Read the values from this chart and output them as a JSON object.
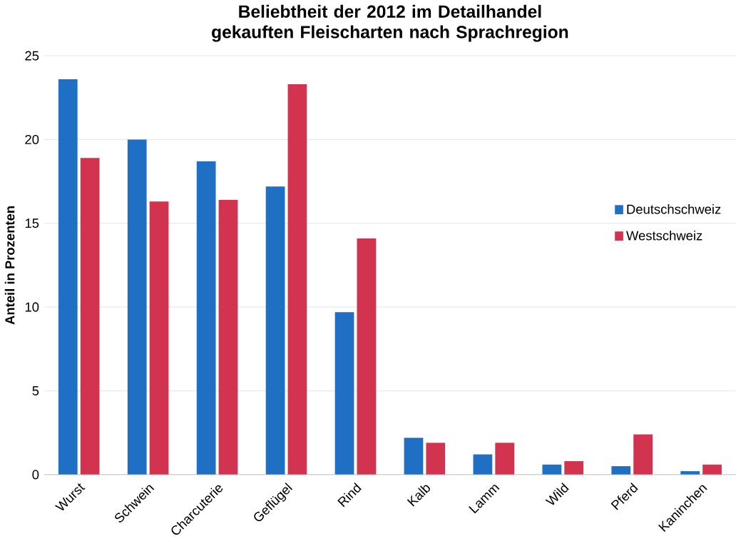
{
  "chart_data": {
    "type": "bar",
    "title": "Beliebtheit der 2012 im Detailhandel gekauften Fleischarten nach Sprachregion",
    "ylabel": "Anteil in Prozenten",
    "categories": [
      "Wurst",
      "Schwein",
      "Charcuterie",
      "Geflügel",
      "Rind",
      "Kalb",
      "Lamm",
      "Wild",
      "Pferd",
      "Kaninchen"
    ],
    "series": [
      {
        "name": "Deutschschweiz",
        "color": "#1f6fc4",
        "values": [
          23.6,
          20.0,
          18.7,
          17.2,
          9.7,
          2.2,
          1.2,
          0.6,
          0.5,
          0.2
        ]
      },
      {
        "name": "Westschweiz",
        "color": "#d2334e",
        "values": [
          18.9,
          16.3,
          16.4,
          23.3,
          14.1,
          1.9,
          1.9,
          0.8,
          2.4,
          0.6
        ]
      }
    ],
    "ylim": [
      0,
      25
    ],
    "yticks": [
      0,
      5,
      10,
      15,
      20,
      25
    ],
    "grid": "y",
    "legend": "right"
  }
}
